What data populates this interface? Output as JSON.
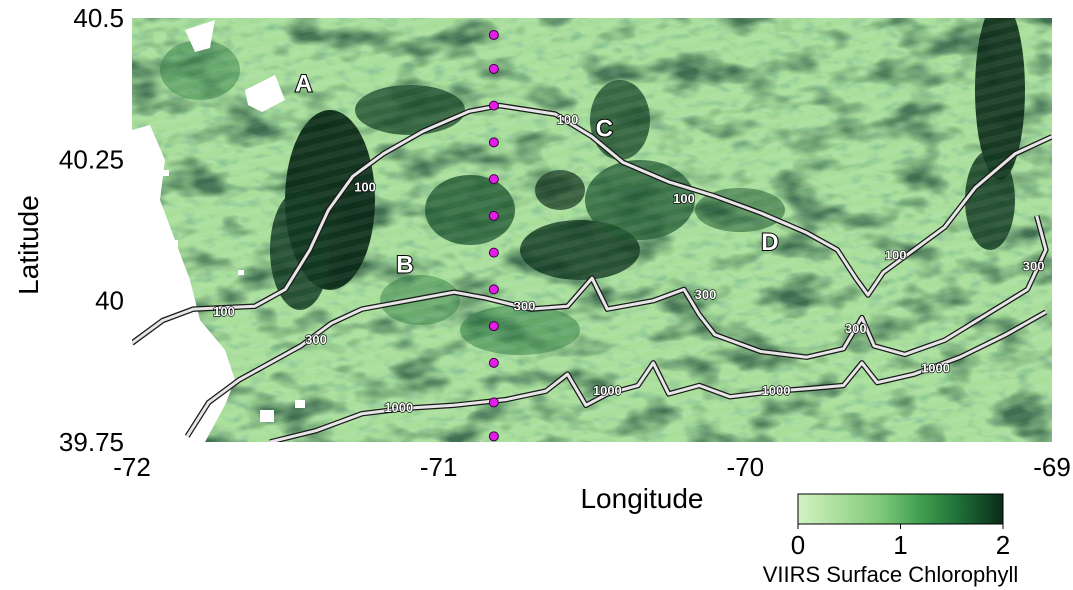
{
  "map": {
    "xlabel": "Longitude",
    "ylabel": "Latitude",
    "lon_range": [
      -72,
      -69
    ],
    "lat_range": [
      39.75,
      40.5
    ],
    "x_ticks": [
      {
        "value": -72,
        "label": "-72"
      },
      {
        "value": -71,
        "label": "-71"
      },
      {
        "value": -70,
        "label": "-70"
      },
      {
        "value": -69,
        "label": "-69"
      }
    ],
    "y_ticks": [
      {
        "value": 40.5,
        "label": "40.5"
      },
      {
        "value": 40.25,
        "label": "40.25"
      },
      {
        "value": 40,
        "label": "40"
      },
      {
        "value": 39.75,
        "label": "39.75"
      }
    ]
  },
  "colorbar": {
    "title": "VIIRS Surface Chlorophyll",
    "range": [
      0,
      2
    ],
    "ticks": [
      {
        "value": 0,
        "label": "0"
      },
      {
        "value": 1,
        "label": "1"
      },
      {
        "value": 2,
        "label": "2"
      }
    ],
    "colors": [
      "#d2f2c6",
      "#a9df9b",
      "#7fc97a",
      "#3f9f4f",
      "#1d6b35",
      "#0b2a17"
    ]
  },
  "region_labels": [
    {
      "text": "A",
      "lon": -71.44,
      "lat": 40.37
    },
    {
      "text": "B",
      "lon": -71.11,
      "lat": 40.05
    },
    {
      "text": "C",
      "lon": -70.46,
      "lat": 40.29
    },
    {
      "text": "D",
      "lon": -69.92,
      "lat": 40.09
    }
  ],
  "stations": {
    "lon": -70.82,
    "lats": [
      40.47,
      40.41,
      40.345,
      40.28,
      40.215,
      40.15,
      40.085,
      40.02,
      39.955,
      39.89,
      39.82,
      39.76
    ],
    "color": "#e21ee8"
  },
  "contours": [
    {
      "depth": "100",
      "points": [
        [
          -72,
          39.925
        ],
        [
          -71.9,
          39.965
        ],
        [
          -71.8,
          39.985
        ],
        [
          -71.6,
          39.99
        ],
        [
          -71.5,
          40.02
        ],
        [
          -71.42,
          40.09
        ],
        [
          -71.36,
          40.16
        ],
        [
          -71.28,
          40.22
        ],
        [
          -71.18,
          40.26
        ],
        [
          -71.05,
          40.3
        ],
        [
          -70.9,
          40.335
        ],
        [
          -70.8,
          40.345
        ],
        [
          -70.62,
          40.33
        ],
        [
          -70.5,
          40.29
        ],
        [
          -70.4,
          40.245
        ],
        [
          -70.25,
          40.21
        ],
        [
          -70.1,
          40.185
        ],
        [
          -69.95,
          40.155
        ],
        [
          -69.8,
          40.12
        ],
        [
          -69.7,
          40.09
        ],
        [
          -69.64,
          40.04
        ],
        [
          -69.6,
          40.01
        ],
        [
          -69.55,
          40.05
        ],
        [
          -69.45,
          40.09
        ],
        [
          -69.35,
          40.13
        ],
        [
          -69.25,
          40.2
        ],
        [
          -69.12,
          40.26
        ],
        [
          -69.0,
          40.29
        ]
      ],
      "labels": [
        {
          "lon": -71.24,
          "lat": 40.2
        },
        {
          "lon": -70.58,
          "lat": 40.32
        },
        {
          "lon": -70.2,
          "lat": 40.18
        },
        {
          "lon": -69.51,
          "lat": 40.08
        },
        {
          "lon": -71.7,
          "lat": 39.98
        }
      ]
    },
    {
      "depth": "300",
      "points": [
        [
          -71.82,
          39.76
        ],
        [
          -71.75,
          39.82
        ],
        [
          -71.65,
          39.86
        ],
        [
          -71.55,
          39.89
        ],
        [
          -71.45,
          39.92
        ],
        [
          -71.35,
          39.96
        ],
        [
          -71.25,
          39.985
        ],
        [
          -71.1,
          40.0
        ],
        [
          -70.95,
          40.015
        ],
        [
          -70.85,
          40.005
        ],
        [
          -70.7,
          39.985
        ],
        [
          -70.58,
          39.99
        ],
        [
          -70.5,
          40.04
        ],
        [
          -70.45,
          39.985
        ],
        [
          -70.3,
          40.0
        ],
        [
          -70.2,
          40.02
        ],
        [
          -70.15,
          39.975
        ],
        [
          -70.1,
          39.94
        ],
        [
          -69.95,
          39.91
        ],
        [
          -69.8,
          39.9
        ],
        [
          -69.68,
          39.915
        ],
        [
          -69.62,
          39.97
        ],
        [
          -69.58,
          39.92
        ],
        [
          -69.48,
          39.905
        ],
        [
          -69.35,
          39.93
        ],
        [
          -69.2,
          39.98
        ],
        [
          -69.08,
          40.02
        ],
        [
          -69.02,
          40.09
        ],
        [
          -69.05,
          40.15
        ]
      ],
      "labels": [
        {
          "lon": -71.4,
          "lat": 39.93
        },
        {
          "lon": -70.72,
          "lat": 39.99
        },
        {
          "lon": -70.13,
          "lat": 40.01
        },
        {
          "lon": -69.64,
          "lat": 39.95
        },
        {
          "lon": -69.06,
          "lat": 40.06
        }
      ]
    },
    {
      "depth": "1000",
      "points": [
        [
          -71.55,
          39.75
        ],
        [
          -71.4,
          39.77
        ],
        [
          -71.25,
          39.8
        ],
        [
          -71.1,
          39.81
        ],
        [
          -70.95,
          39.815
        ],
        [
          -70.78,
          39.825
        ],
        [
          -70.65,
          39.84
        ],
        [
          -70.58,
          39.87
        ],
        [
          -70.52,
          39.815
        ],
        [
          -70.45,
          39.835
        ],
        [
          -70.35,
          39.85
        ],
        [
          -70.3,
          39.89
        ],
        [
          -70.25,
          39.835
        ],
        [
          -70.15,
          39.85
        ],
        [
          -70.05,
          39.83
        ],
        [
          -69.9,
          39.84
        ],
        [
          -69.78,
          39.845
        ],
        [
          -69.68,
          39.85
        ],
        [
          -69.62,
          39.89
        ],
        [
          -69.57,
          39.855
        ],
        [
          -69.45,
          39.87
        ],
        [
          -69.3,
          39.9
        ],
        [
          -69.15,
          39.94
        ],
        [
          -69.02,
          39.98
        ]
      ],
      "labels": [
        {
          "lon": -71.13,
          "lat": 39.81
        },
        {
          "lon": -70.45,
          "lat": 39.84
        },
        {
          "lon": -69.9,
          "lat": 39.84
        },
        {
          "lon": -69.38,
          "lat": 39.88
        }
      ]
    }
  ],
  "cloud_color": "#ffffff"
}
